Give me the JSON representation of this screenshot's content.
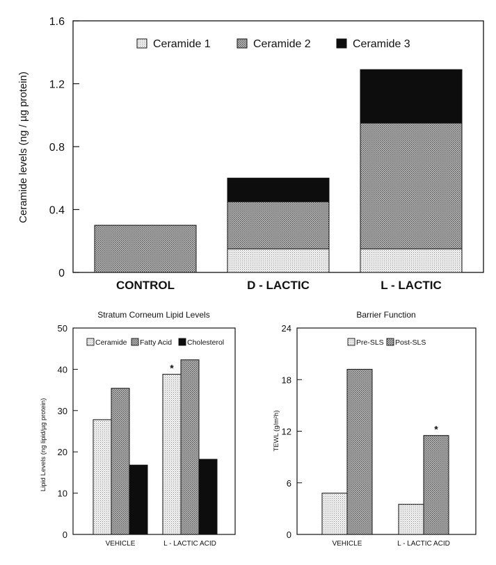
{
  "chart_data": [
    {
      "type": "bar",
      "stacked": true,
      "title": "",
      "xlabel": "",
      "ylabel": "Ceramide levels  (ng / µg protein)",
      "ylim": [
        0,
        1.6
      ],
      "yticks": [
        "0",
        "0.4",
        "0.8",
        "1.2",
        "1.6"
      ],
      "ytick_values": [
        0,
        0.4,
        0.8,
        1.2,
        1.6
      ],
      "categories": [
        "CONTROL",
        "D - LACTIC",
        "L - LACTIC"
      ],
      "legend_position": "top",
      "series": [
        {
          "name": "Ceramide 1",
          "values": [
            0,
            0.15,
            0.15
          ],
          "pattern": "light"
        },
        {
          "name": "Ceramide 2",
          "values": [
            0.3,
            0.3,
            0.8
          ],
          "pattern": "medium"
        },
        {
          "name": "Ceramide 3",
          "values": [
            0,
            0.15,
            0.34
          ],
          "pattern": "solid"
        }
      ]
    },
    {
      "type": "bar",
      "stacked": false,
      "title": "Stratum Corneum Lipid Levels",
      "xlabel": "",
      "ylabel": "Lipid Levels (ng lipid/µg protein)",
      "ylim": [
        0,
        50
      ],
      "yticks": [
        "0",
        "10",
        "20",
        "30",
        "40",
        "50"
      ],
      "ytick_values": [
        0,
        10,
        20,
        30,
        40,
        50
      ],
      "categories": [
        "VEHICLE",
        "L - LACTIC ACID"
      ],
      "legend_position": "top",
      "series": [
        {
          "name": "Ceramide",
          "values": [
            27.8,
            38.8
          ],
          "pattern": "light"
        },
        {
          "name": "Fatty Acid",
          "values": [
            35.4,
            42.3
          ],
          "pattern": "medium"
        },
        {
          "name": "Cholesterol",
          "values": [
            16.8,
            18.2
          ],
          "pattern": "solid"
        }
      ],
      "annotations": [
        {
          "text": "*",
          "category": 1,
          "series": 0
        }
      ]
    },
    {
      "type": "bar",
      "stacked": false,
      "title": "Barrier Function",
      "xlabel": "",
      "ylabel": "TEWL (g/m²h)",
      "ylim": [
        0,
        24
      ],
      "yticks": [
        "0",
        "6",
        "12",
        "18",
        "24"
      ],
      "ytick_values": [
        0,
        6,
        12,
        18,
        24
      ],
      "categories": [
        "VEHICLE",
        "L - LACTIC ACID"
      ],
      "legend_position": "top",
      "series": [
        {
          "name": "Pre-SLS",
          "values": [
            4.8,
            3.5
          ],
          "pattern": "light"
        },
        {
          "name": "Post-SLS",
          "values": [
            19.2,
            11.5
          ],
          "pattern": "medium"
        }
      ],
      "annotations": [
        {
          "text": "*",
          "category": 1,
          "series": 1
        }
      ]
    }
  ],
  "colors": {
    "frame": "#111111",
    "light_fill": "#ececec",
    "medium_fill": "#a8a8a8",
    "solid_fill": "#0d0d0d"
  }
}
